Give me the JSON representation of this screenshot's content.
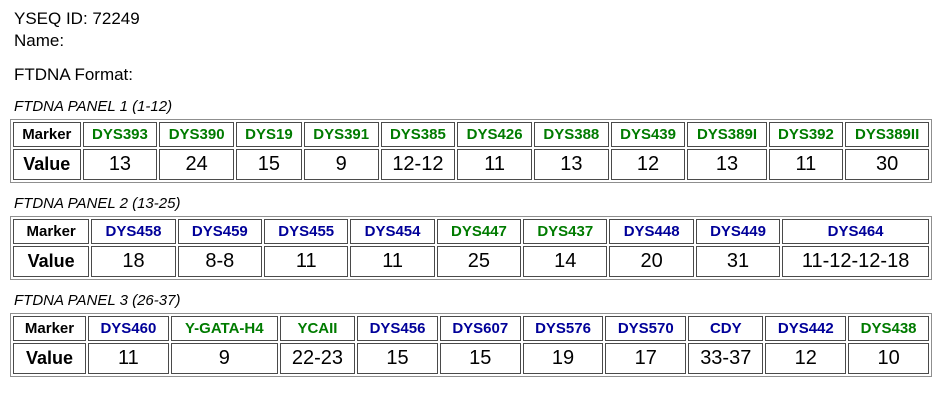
{
  "header": {
    "yseq_id": "YSEQ ID: 72249",
    "name": "Name:",
    "format": "FTDNA Format:"
  },
  "table_labels": {
    "marker": "Marker",
    "value": "Value"
  },
  "colors": {
    "green": "#007B00",
    "navy": "#000099",
    "value_text": "#000000"
  },
  "panels": [
    {
      "title": "FTDNA PANEL 1 (1-12)",
      "columns": [
        {
          "marker": "DYS393",
          "color": "green",
          "value": "13"
        },
        {
          "marker": "DYS390",
          "color": "green",
          "value": "24"
        },
        {
          "marker": "DYS19",
          "color": "green",
          "value": "15"
        },
        {
          "marker": "DYS391",
          "color": "green",
          "value": "9"
        },
        {
          "marker": "DYS385",
          "color": "green",
          "value": "12-12"
        },
        {
          "marker": "DYS426",
          "color": "green",
          "value": "11"
        },
        {
          "marker": "DYS388",
          "color": "green",
          "value": "13"
        },
        {
          "marker": "DYS439",
          "color": "green",
          "value": "12"
        },
        {
          "marker": "DYS389I",
          "color": "green",
          "value": "13"
        },
        {
          "marker": "DYS392",
          "color": "green",
          "value": "11"
        },
        {
          "marker": "DYS389II",
          "color": "green",
          "value": "30"
        }
      ]
    },
    {
      "title": "FTDNA PANEL 2 (13-25)",
      "columns": [
        {
          "marker": "DYS458",
          "color": "navy",
          "value": "18"
        },
        {
          "marker": "DYS459",
          "color": "navy",
          "value": "8-8"
        },
        {
          "marker": "DYS455",
          "color": "navy",
          "value": "11"
        },
        {
          "marker": "DYS454",
          "color": "navy",
          "value": "11"
        },
        {
          "marker": "DYS447",
          "color": "green",
          "value": "25"
        },
        {
          "marker": "DYS437",
          "color": "green",
          "value": "14"
        },
        {
          "marker": "DYS448",
          "color": "navy",
          "value": "20"
        },
        {
          "marker": "DYS449",
          "color": "navy",
          "value": "31"
        },
        {
          "marker": "DYS464",
          "color": "navy",
          "value": "11-12-12-18"
        }
      ]
    },
    {
      "title": "FTDNA PANEL 3 (26-37)",
      "columns": [
        {
          "marker": "DYS460",
          "color": "navy",
          "value": "11"
        },
        {
          "marker": "Y-GATA-H4",
          "color": "green",
          "value": "9"
        },
        {
          "marker": "YCAII",
          "color": "green",
          "value": "22-23"
        },
        {
          "marker": "DYS456",
          "color": "navy",
          "value": "15"
        },
        {
          "marker": "DYS607",
          "color": "navy",
          "value": "15"
        },
        {
          "marker": "DYS576",
          "color": "navy",
          "value": "19"
        },
        {
          "marker": "DYS570",
          "color": "navy",
          "value": "17"
        },
        {
          "marker": "CDY",
          "color": "navy",
          "value": "33-37"
        },
        {
          "marker": "DYS442",
          "color": "navy",
          "value": "12"
        },
        {
          "marker": "DYS438",
          "color": "green",
          "value": "10"
        }
      ]
    }
  ]
}
